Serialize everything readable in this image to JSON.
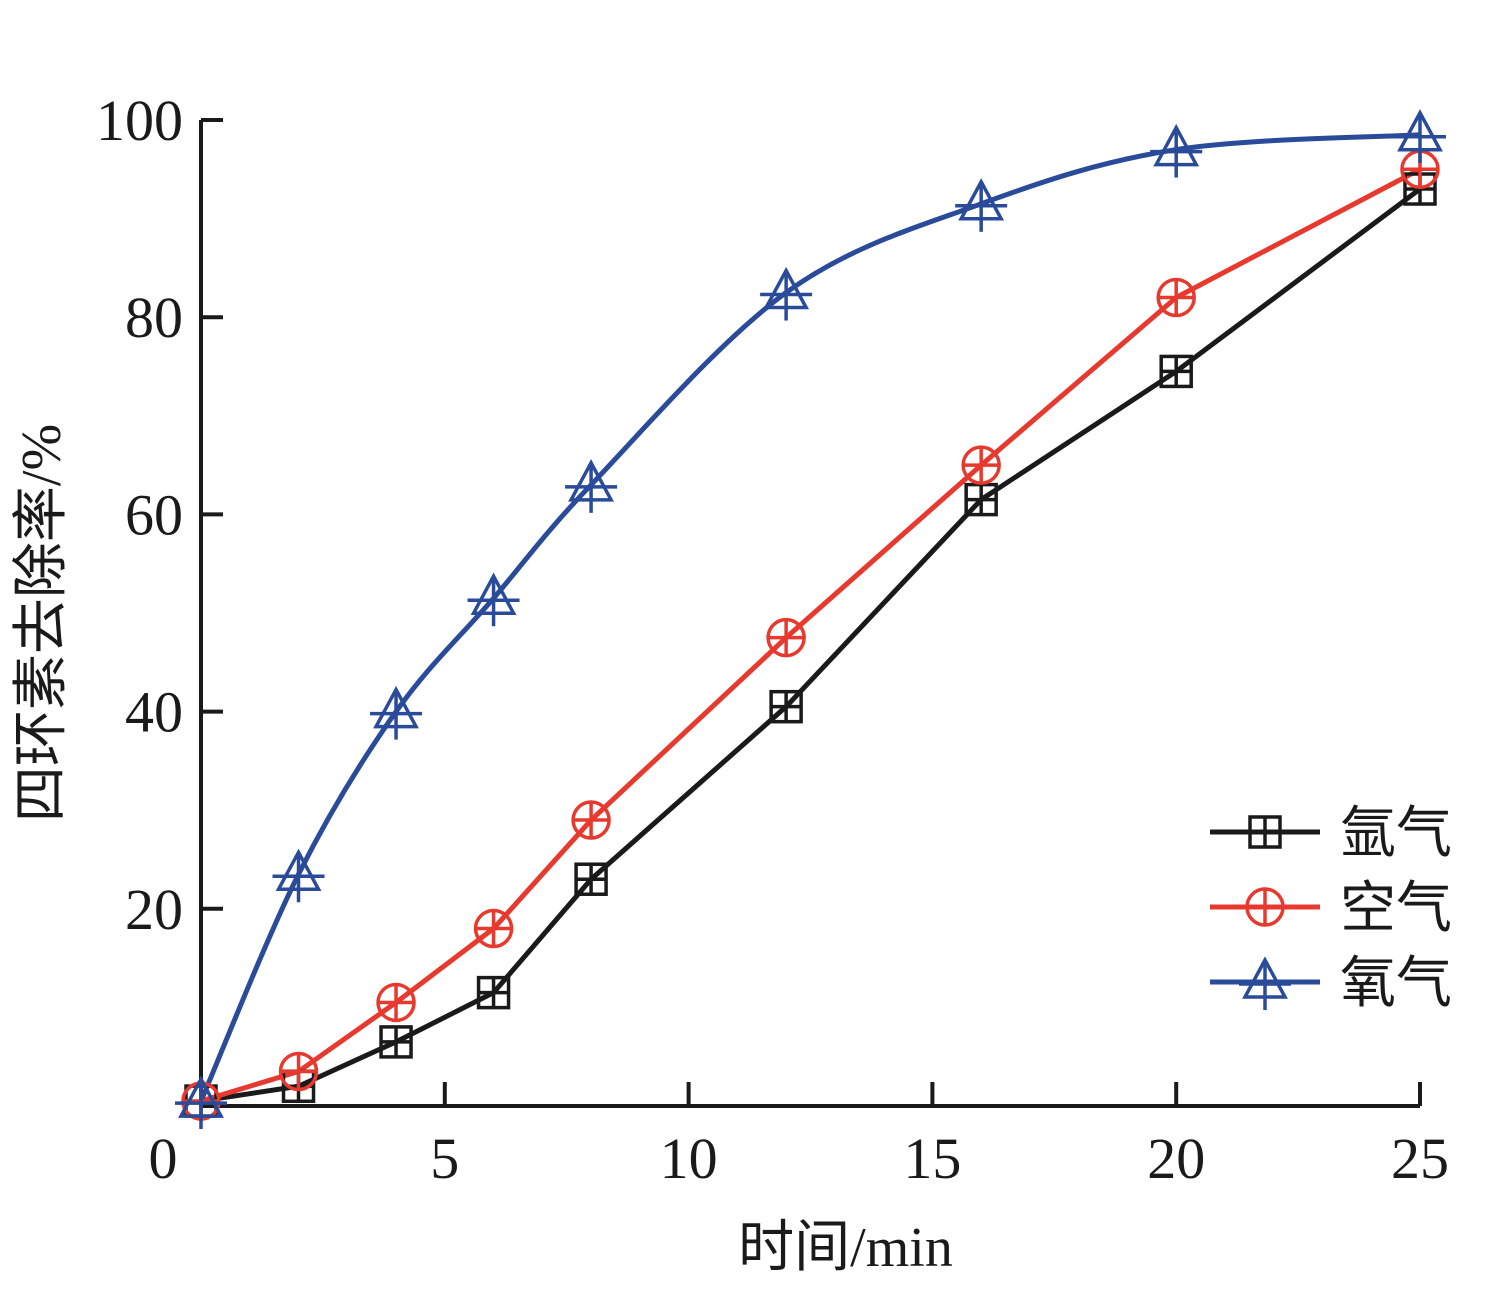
{
  "chart_data": {
    "type": "line",
    "xlabel": "时间/min",
    "ylabel": "四环素去除率/%",
    "xlim": [
      0,
      25
    ],
    "ylim": [
      0,
      100
    ],
    "x_ticks": [
      0,
      5,
      10,
      15,
      20,
      25
    ],
    "y_ticks": [
      20,
      40,
      60,
      80,
      100
    ],
    "x_tick_labels": [
      "0",
      "5",
      "10",
      "15",
      "20",
      "25"
    ],
    "y_tick_labels": [
      "20",
      "40",
      "60",
      "80",
      "100"
    ],
    "legend_position": "bottom-right",
    "grid": false,
    "series": [
      {
        "name": "氩气",
        "color": "#1a1a1a",
        "marker": "square-cross",
        "x": [
          0,
          2,
          4,
          6,
          8,
          12,
          16,
          20,
          25
        ],
        "y": [
          0.5,
          2,
          6.5,
          11.5,
          23,
          40.5,
          61.5,
          74.5,
          93
        ]
      },
      {
        "name": "空气",
        "color": "#e8392e",
        "marker": "circle-cross",
        "x": [
          0,
          2,
          4,
          6,
          8,
          12,
          16,
          20,
          25
        ],
        "y": [
          0.5,
          3.5,
          10.5,
          18,
          29,
          47.5,
          65,
          82,
          95
        ]
      },
      {
        "name": "氧气",
        "color": "#2a4a9a",
        "marker": "triangle-cross",
        "x": [
          0,
          2,
          4,
          6,
          8,
          12,
          16,
          20,
          25
        ],
        "y": [
          0.5,
          23.5,
          40,
          51.5,
          63,
          82.5,
          91.5,
          97,
          98.5
        ]
      }
    ]
  }
}
